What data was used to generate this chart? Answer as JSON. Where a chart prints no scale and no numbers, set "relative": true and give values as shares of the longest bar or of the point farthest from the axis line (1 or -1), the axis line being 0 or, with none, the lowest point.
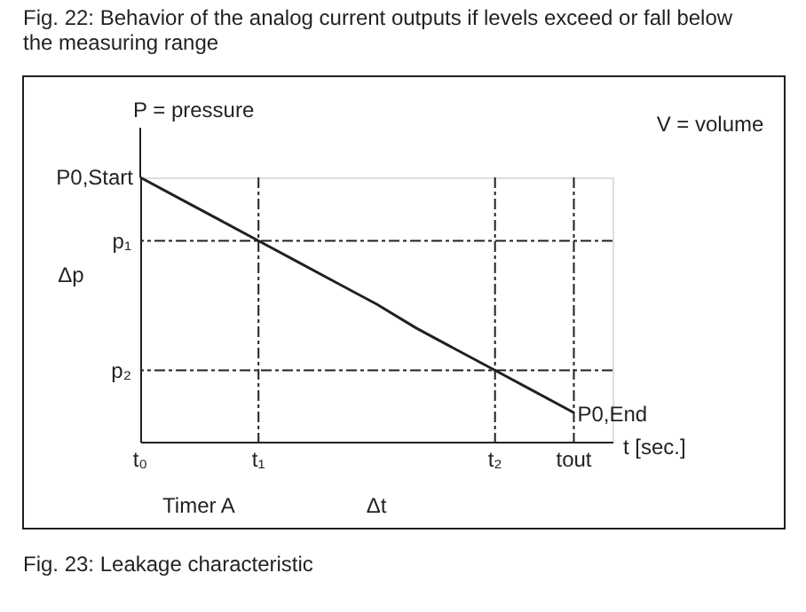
{
  "chart_data": {
    "type": "line",
    "title": "Fig. 22: Behavior of the analog current outputs if levels exceed or fall below the measuring range",
    "xlabel": "t [sec.]",
    "ylabel": "P = pressure",
    "relative": true,
    "tick_labels": "x",
    "line_style": "solid",
    "categories": [
      "t₀",
      null,
      null,
      "t₁",
      null,
      null,
      null,
      null,
      null,
      "t₂",
      null,
      "tout"
    ],
    "series": [
      {
        "color": "#231f20",
        "values": [
          1,
          0.92,
          0.84,
          0.76,
          0.68,
          0.6,
          0.52,
          0.43,
          0.35,
          0.27,
          0.19,
          0.11
        ]
      }
    ],
    "ref_lines": [
      {
        "axis": "y",
        "value": 0.76,
        "label": "p₁",
        "line_style": "dashed"
      },
      {
        "axis": "y",
        "value": 0.27,
        "label": "p₂",
        "line_style": "dashed"
      },
      {
        "axis": "x",
        "value": "t₁",
        "line_style": "dashed"
      },
      {
        "axis": "x",
        "value": "t₂",
        "line_style": "dashed"
      },
      {
        "axis": "x",
        "value": "tout",
        "line_style": "dashed"
      }
    ],
    "annotations": [
      {
        "text": "P0,Start",
        "x": "t₀",
        "y": 1
      },
      {
        "text": "P0,End",
        "x": "tout",
        "y": 0.11
      },
      "Δp",
      "Timer A",
      "Δt",
      "V = volume",
      "Fig. 23: Leakage characteristic"
    ]
  }
}
